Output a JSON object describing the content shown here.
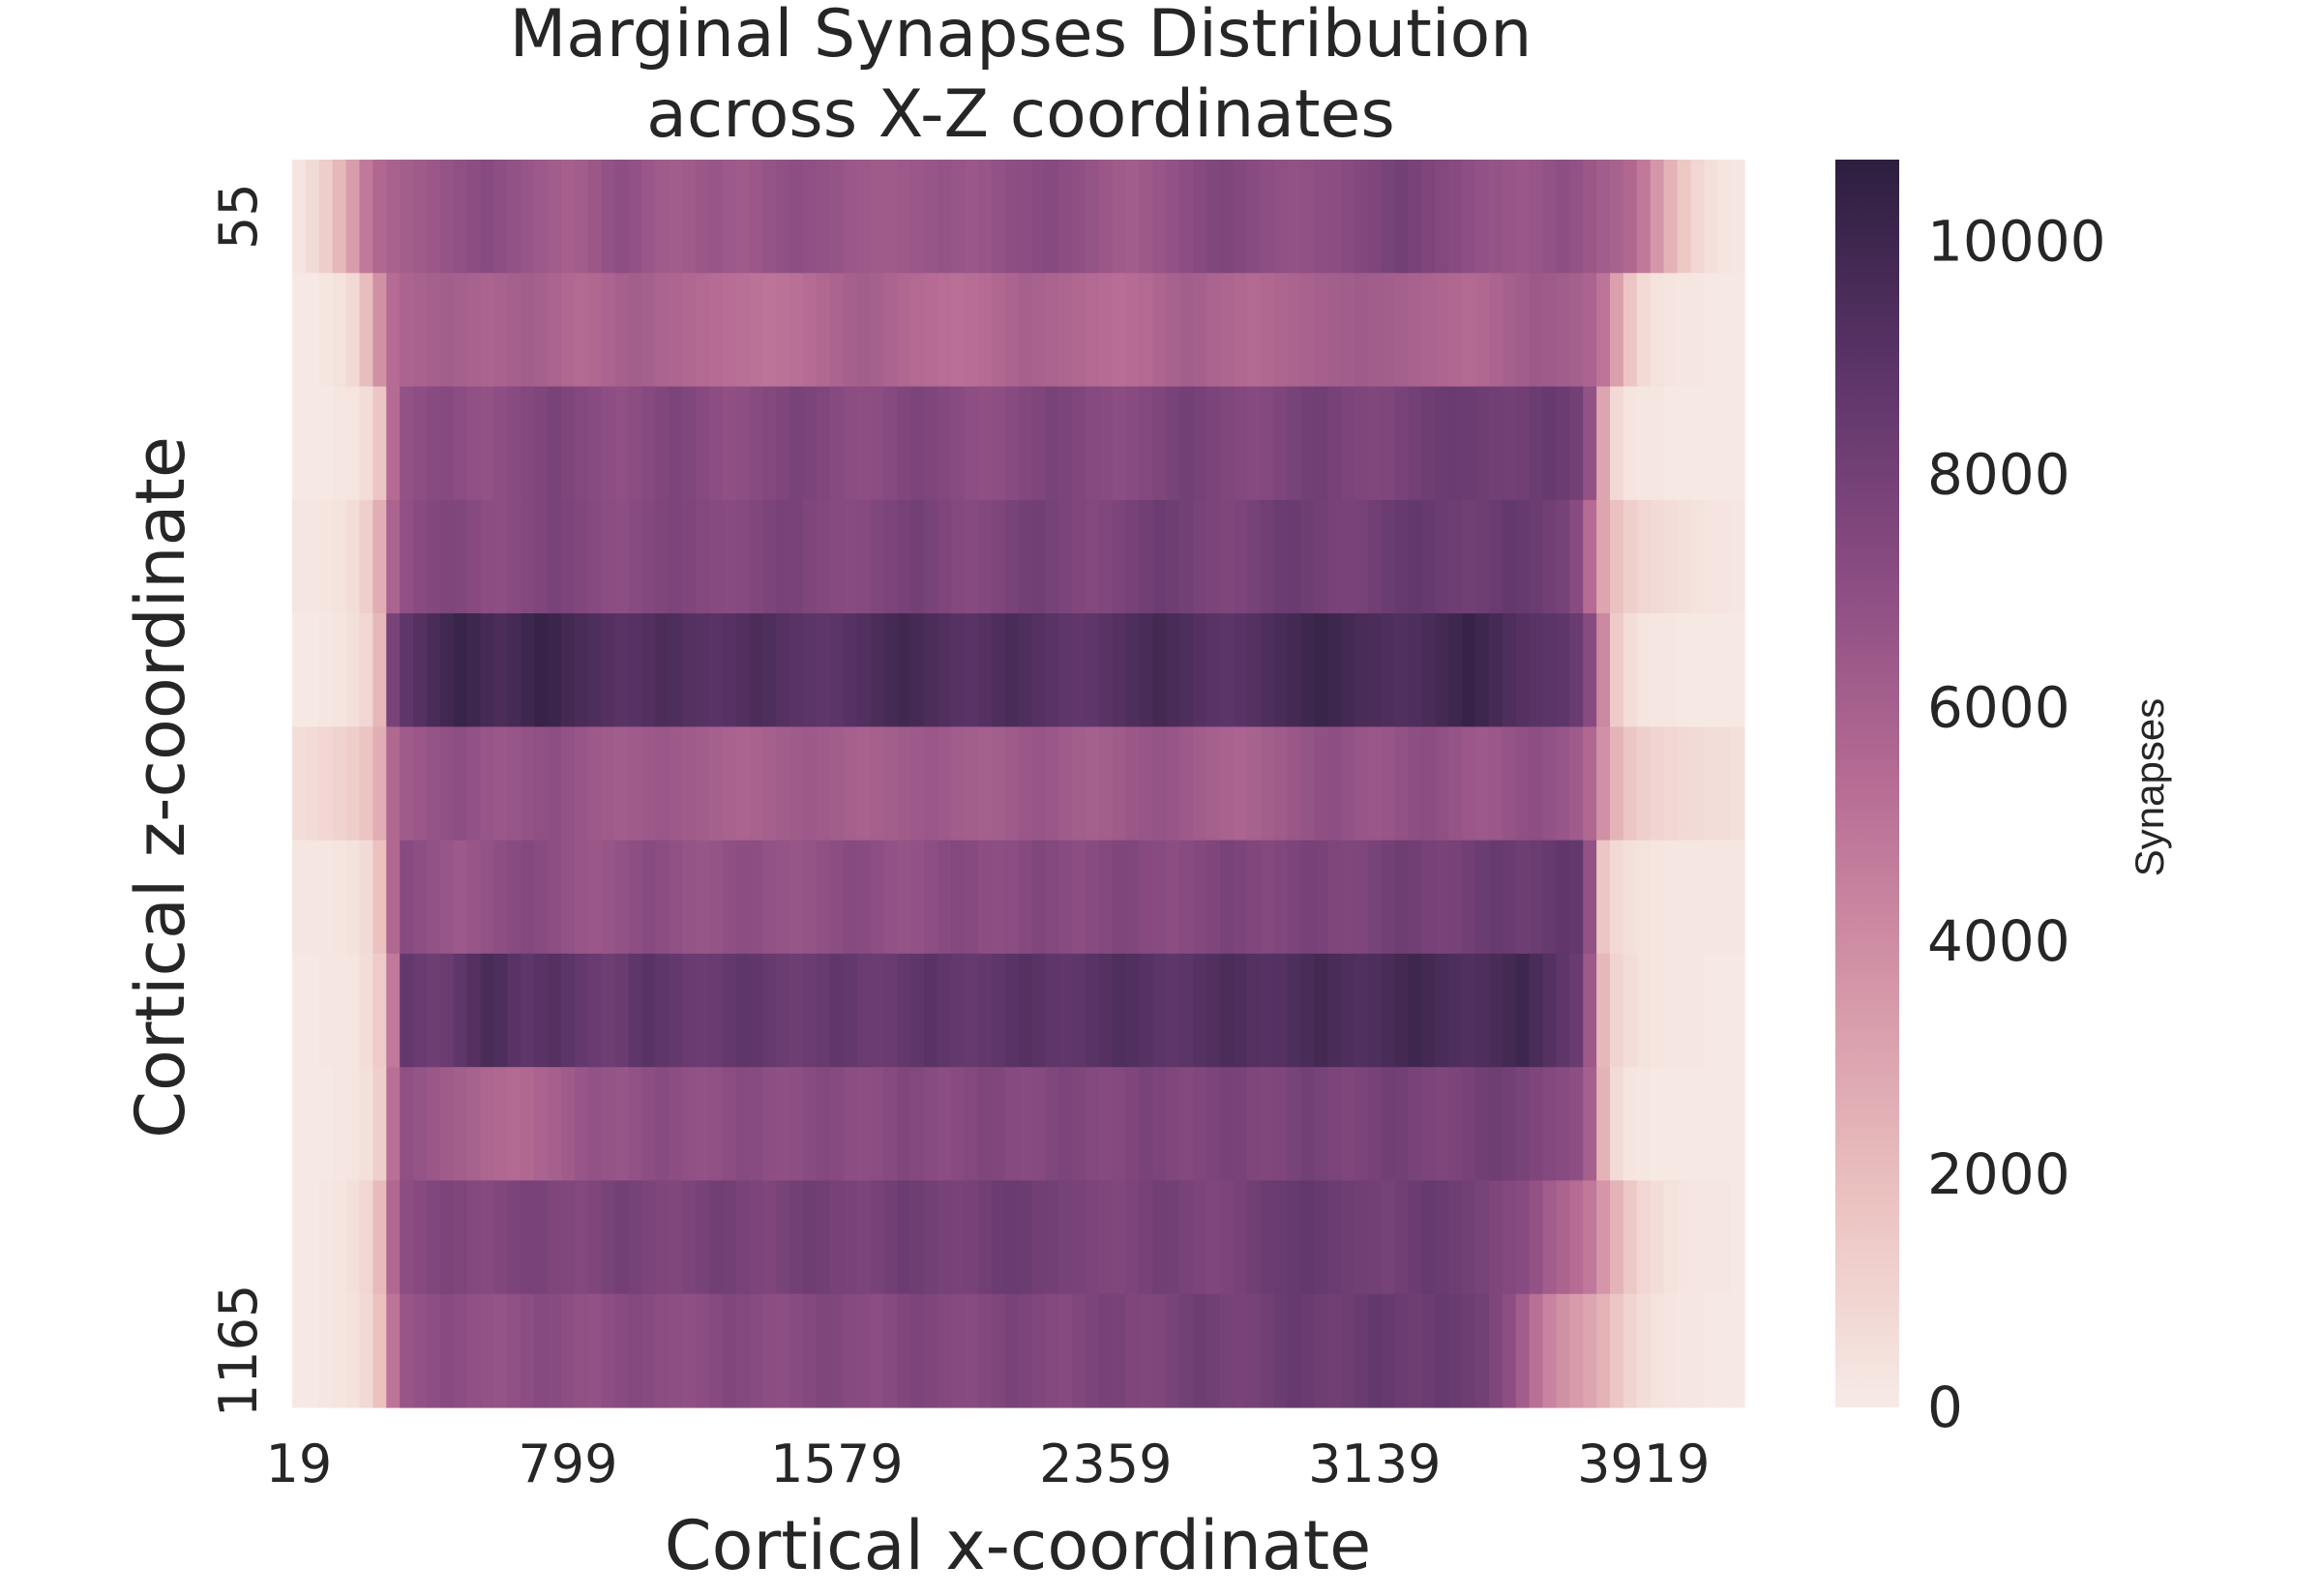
{
  "chart_data": {
    "type": "heatmap",
    "title": [
      "Marginal Synapses Distribution",
      "across X-Z coordinates"
    ],
    "xlabel": "Cortical x-coordinate",
    "ylabel": "Cortical z-coordinate",
    "x_tick_labels": [
      "19",
      "799",
      "1579",
      "2359",
      "3139",
      "3919"
    ],
    "x_tick_columns": [
      0,
      20,
      40,
      60,
      80,
      100
    ],
    "y_tick_labels": [
      "55",
      "1165"
    ],
    "y_tick_rows": [
      0,
      10
    ],
    "colorbar": {
      "label": "Synapses",
      "min": 0,
      "max": 10700,
      "ticks": [
        "0",
        "2000",
        "4000",
        "6000",
        "8000",
        "10000"
      ],
      "colors": [
        "#f7ebe6",
        "#ebc2c0",
        "#d597a8",
        "#b66c94",
        "#8a4c82",
        "#5b3468",
        "#2c1e3e"
      ]
    },
    "grid": false,
    "n_columns": 108,
    "rows": [
      [
        300,
        700,
        1300,
        2200,
        3300,
        4800,
        5600,
        5900,
        6100,
        6300,
        6500,
        6700,
        6900,
        7100,
        7200,
        7000,
        6800,
        6600,
        6400,
        6200,
        6000,
        6200,
        6500,
        6800,
        7000,
        6800,
        6500,
        6300,
        6200,
        6300,
        6500,
        6600,
        6400,
        6300,
        6500,
        6700,
        6900,
        7000,
        6900,
        6800,
        6700,
        6500,
        6400,
        6300,
        6300,
        6400,
        6500,
        6600,
        6700,
        6600,
        6500,
        6600,
        6800,
        7000,
        7100,
        7200,
        7300,
        7100,
        6900,
        6700,
        6500,
        6300,
        6200,
        6400,
        6600,
        6800,
        7100,
        7300,
        7500,
        7600,
        7400,
        7200,
        7000,
        6900,
        6800,
        6900,
        7000,
        7100,
        7200,
        7400,
        7600,
        7800,
        8000,
        7800,
        7600,
        7400,
        7200,
        7000,
        6800,
        6700,
        6600,
        6500,
        6600,
        6800,
        7000,
        6800,
        6500,
        6200,
        5900,
        5600,
        4800,
        3600,
        2400,
        1500,
        900,
        500,
        300,
        200
      ],
      [
        100,
        100,
        200,
        400,
        800,
        2000,
        3800,
        5400,
        5800,
        5900,
        6000,
        6100,
        6000,
        5900,
        5800,
        5900,
        6000,
        6100,
        6000,
        5800,
        5600,
        5500,
        5600,
        5800,
        6000,
        6100,
        6000,
        5800,
        5700,
        5600,
        5500,
        5400,
        5300,
        5200,
        5100,
        5000,
        5100,
        5200,
        5400,
        5600,
        5800,
        6000,
        6100,
        6000,
        5800,
        5600,
        5500,
        5400,
        5300,
        5200,
        5300,
        5400,
        5600,
        5800,
        6000,
        5900,
        5800,
        5700,
        5600,
        5500,
        5400,
        5300,
        5400,
        5500,
        5700,
        5900,
        6100,
        6000,
        5800,
        5700,
        5600,
        5500,
        5600,
        5700,
        5800,
        5900,
        6000,
        6100,
        6200,
        6300,
        6200,
        6100,
        6000,
        5900,
        5800,
        5700,
        5600,
        5500,
        5600,
        5800,
        6000,
        6200,
        6400,
        6300,
        6200,
        6000,
        5800,
        5000,
        3200,
        1600,
        700,
        400,
        300,
        200,
        200,
        100,
        100,
        100
      ],
      [
        100,
        100,
        100,
        200,
        300,
        600,
        1600,
        5400,
        6800,
        7000,
        7200,
        7300,
        7100,
        6900,
        6800,
        7000,
        7200,
        7400,
        7600,
        7800,
        7600,
        7400,
        7200,
        7000,
        6900,
        7100,
        7300,
        7500,
        7700,
        7500,
        7300,
        7100,
        6900,
        7000,
        7200,
        7400,
        7600,
        7800,
        7700,
        7500,
        7300,
        7100,
        7000,
        7100,
        7300,
        7500,
        7700,
        7600,
        7400,
        7200,
        7000,
        6900,
        7000,
        7200,
        7400,
        7600,
        7800,
        7700,
        7500,
        7300,
        7200,
        7100,
        7200,
        7400,
        7600,
        7800,
        8000,
        7900,
        7700,
        7500,
        7400,
        7300,
        7400,
        7600,
        7800,
        8000,
        8100,
        7900,
        7700,
        7600,
        7500,
        7600,
        7800,
        8000,
        8200,
        8300,
        8400,
        8300,
        8200,
        8100,
        8000,
        8100,
        8300,
        8500,
        8300,
        8000,
        6800,
        3000,
        800,
        300,
        200,
        200,
        100,
        100,
        100,
        100,
        100,
        100
      ],
      [
        200,
        200,
        300,
        400,
        600,
        1200,
        2600,
        5800,
        6900,
        7200,
        7400,
        7600,
        7500,
        7300,
        7100,
        7000,
        7200,
        7400,
        7600,
        7800,
        7700,
        7500,
        7300,
        7100,
        7000,
        7200,
        7400,
        7600,
        7700,
        7600,
        7400,
        7300,
        7200,
        7300,
        7500,
        7700,
        7900,
        7800,
        7600,
        7400,
        7300,
        7200,
        7300,
        7500,
        7700,
        7900,
        8000,
        7800,
        7600,
        7400,
        7300,
        7400,
        7600,
        7800,
        8000,
        8100,
        7900,
        7700,
        7500,
        7400,
        7500,
        7700,
        7900,
        8100,
        8300,
        8200,
        8000,
        7800,
        7700,
        7600,
        7700,
        7900,
        8100,
        8300,
        8400,
        8200,
        8000,
        7900,
        7800,
        7900,
        8100,
        8300,
        8500,
        8600,
        8500,
        8300,
        8200,
        8100,
        8200,
        8400,
        8600,
        8500,
        8300,
        8100,
        7900,
        7200,
        5400,
        3000,
        1800,
        1200,
        900,
        700,
        600,
        500,
        400,
        300,
        300,
        200
      ],
      [
        100,
        100,
        200,
        300,
        500,
        900,
        2200,
        7800,
        8800,
        9200,
        9600,
        9900,
        10200,
        10000,
        9700,
        9500,
        9700,
        10000,
        10300,
        10100,
        9800,
        9600,
        9400,
        9200,
        9000,
        9100,
        9300,
        9500,
        9400,
        9200,
        9100,
        9000,
        9100,
        9300,
        9500,
        9400,
        9200,
        9000,
        8900,
        8800,
        8900,
        9100,
        9300,
        9500,
        9700,
        9900,
        9700,
        9500,
        9300,
        9100,
        9000,
        9200,
        9400,
        9600,
        9400,
        9200,
        9000,
        8800,
        8700,
        8800,
        9000,
        9200,
        9400,
        9600,
        9800,
        9600,
        9400,
        9200,
        9000,
        8900,
        9000,
        9200,
        9400,
        9600,
        9800,
        10000,
        10200,
        10000,
        9800,
        9600,
        9500,
        9400,
        9300,
        9400,
        9600,
        9800,
        10000,
        10300,
        10000,
        9700,
        9400,
        9200,
        9000,
        8900,
        8800,
        8400,
        7200,
        4200,
        1400,
        600,
        300,
        200,
        200,
        100,
        100,
        100,
        100,
        100
      ],
      [
        600,
        700,
        900,
        1100,
        1300,
        1700,
        2600,
        5600,
        6300,
        6500,
        6700,
        6900,
        7000,
        6800,
        6600,
        6500,
        6600,
        6800,
        6900,
        7000,
        6800,
        6600,
        6400,
        6300,
        6200,
        6300,
        6400,
        6500,
        6400,
        6300,
        6200,
        6000,
        5900,
        5800,
        5900,
        6000,
        6200,
        6300,
        6400,
        6300,
        6200,
        6000,
        5900,
        6000,
        6100,
        6300,
        6400,
        6500,
        6400,
        6200,
        6100,
        6000,
        6100,
        6300,
        6500,
        6600,
        6500,
        6300,
        6100,
        6000,
        6100,
        6300,
        6500,
        6600,
        6700,
        6600,
        6400,
        6200,
        6000,
        5900,
        5800,
        5900,
        6100,
        6300,
        6500,
        6700,
        6900,
        7000,
        6800,
        6600,
        6500,
        6600,
        6800,
        7000,
        7100,
        6900,
        6700,
        6500,
        6400,
        6500,
        6700,
        6900,
        7000,
        6800,
        6600,
        6300,
        5600,
        3800,
        2400,
        1600,
        1200,
        1000,
        900,
        800,
        700,
        600,
        600,
        500
      ],
      [
        200,
        200,
        200,
        300,
        400,
        700,
        1800,
        5600,
        7200,
        7000,
        6800,
        6600,
        6400,
        6600,
        6800,
        7000,
        7200,
        7400,
        7200,
        7000,
        6800,
        6600,
        6500,
        6600,
        6800,
        7000,
        7200,
        7100,
        6900,
        6700,
        6600,
        6700,
        6900,
        7100,
        7000,
        6800,
        6700,
        6600,
        6700,
        6900,
        7100,
        7300,
        7200,
        7000,
        6800,
        6700,
        6800,
        7000,
        7200,
        7400,
        7300,
        7100,
        7000,
        7100,
        7300,
        7500,
        7400,
        7200,
        7100,
        7200,
        7400,
        7600,
        7500,
        7300,
        7200,
        7100,
        7200,
        7400,
        7600,
        7800,
        7700,
        7500,
        7400,
        7500,
        7700,
        7900,
        7800,
        7600,
        7500,
        7600,
        7800,
        8000,
        8200,
        8100,
        7900,
        7800,
        7900,
        8100,
        8300,
        8500,
        8400,
        8200,
        8300,
        8500,
        8700,
        8600,
        6800,
        1600,
        800,
        500,
        400,
        300,
        200,
        200,
        200,
        200,
        200,
        200
      ],
      [
        100,
        100,
        200,
        200,
        300,
        600,
        1400,
        4800,
        8600,
        8400,
        8200,
        8400,
        8800,
        9200,
        9600,
        9400,
        9000,
        8800,
        9000,
        9200,
        8900,
        8600,
        8400,
        8200,
        8400,
        8800,
        9000,
        8800,
        8600,
        8400,
        8300,
        8400,
        8600,
        8800,
        8700,
        8500,
        8300,
        8200,
        8300,
        8500,
        8700,
        8600,
        8400,
        8300,
        8400,
        8600,
        8800,
        9000,
        8800,
        8600,
        8500,
        8600,
        8800,
        9000,
        9200,
        9000,
        8800,
        8700,
        8800,
        9000,
        9200,
        9400,
        9300,
        9100,
        8900,
        8800,
        8900,
        9100,
        9300,
        9500,
        9400,
        9200,
        9100,
        9200,
        9400,
        9600,
        9800,
        9600,
        9400,
        9300,
        9400,
        9600,
        9800,
        10000,
        9800,
        9600,
        9400,
        9300,
        9400,
        9600,
        9800,
        10000,
        9600,
        9200,
        8800,
        8400,
        6400,
        2200,
        1000,
        600,
        400,
        300,
        200,
        200,
        200,
        100,
        100,
        100
      ],
      [
        100,
        100,
        100,
        200,
        300,
        500,
        1200,
        5200,
        6900,
        6700,
        6500,
        6300,
        6100,
        5900,
        5700,
        5600,
        5500,
        5600,
        5800,
        6000,
        6300,
        6600,
        6800,
        6700,
        6600,
        6800,
        7000,
        7200,
        7100,
        6900,
        6800,
        6900,
        7100,
        7300,
        7200,
        7000,
        6900,
        7000,
        7200,
        7400,
        7300,
        7100,
        7000,
        7100,
        7300,
        7500,
        7400,
        7200,
        7100,
        7200,
        7400,
        7600,
        7500,
        7300,
        7200,
        7300,
        7500,
        7700,
        7600,
        7400,
        7300,
        7400,
        7600,
        7800,
        7700,
        7500,
        7400,
        7500,
        7700,
        7900,
        7800,
        7600,
        7500,
        7600,
        7800,
        8000,
        7900,
        7700,
        7600,
        7700,
        7900,
        8100,
        8000,
        7800,
        7700,
        7600,
        7700,
        7900,
        8100,
        8200,
        8000,
        7800,
        7600,
        7400,
        7200,
        7000,
        6000,
        2400,
        700,
        300,
        200,
        100,
        100,
        100,
        100,
        100,
        100,
        100
      ],
      [
        100,
        100,
        200,
        300,
        500,
        900,
        2100,
        5600,
        7100,
        7300,
        7500,
        7700,
        7600,
        7400,
        7300,
        7500,
        7700,
        7900,
        7800,
        7600,
        7500,
        7400,
        7600,
        7800,
        8000,
        7900,
        7700,
        7600,
        7500,
        7700,
        7900,
        8100,
        8000,
        7800,
        7700,
        7600,
        7800,
        8000,
        8200,
        8100,
        7900,
        7800,
        7700,
        7900,
        8100,
        8300,
        8200,
        8000,
        7900,
        7800,
        7900,
        8100,
        8300,
        8400,
        8300,
        8100,
        8000,
        7900,
        7800,
        7700,
        7600,
        7500,
        7700,
        7900,
        8100,
        8000,
        7800,
        7700,
        7600,
        7700,
        7900,
        8100,
        8300,
        8400,
        8500,
        8600,
        8500,
        8300,
        8200,
        8100,
        8000,
        7900,
        8100,
        8300,
        8500,
        8400,
        8200,
        8000,
        7800,
        7600,
        7400,
        7200,
        6800,
        6200,
        5800,
        5400,
        4800,
        3600,
        2400,
        1500,
        900,
        600,
        400,
        300,
        200,
        200,
        200,
        100
      ],
      [
        100,
        100,
        200,
        300,
        400,
        800,
        1800,
        5000,
        6600,
        6800,
        7000,
        7200,
        7100,
        6900,
        6800,
        6700,
        6900,
        7100,
        7300,
        7200,
        7000,
        6900,
        6800,
        7000,
        7200,
        7400,
        7300,
        7100,
        7000,
        6900,
        7100,
        7300,
        7500,
        7400,
        7200,
        7100,
        7000,
        7200,
        7400,
        7600,
        7500,
        7300,
        7200,
        7100,
        7300,
        7500,
        7700,
        7600,
        7400,
        7300,
        7200,
        7400,
        7600,
        7800,
        7700,
        7500,
        7400,
        7300,
        7500,
        7700,
        7900,
        7800,
        7600,
        7500,
        7600,
        7800,
        8000,
        8200,
        8100,
        7900,
        7800,
        7900,
        8100,
        8300,
        8500,
        8400,
        8200,
        8100,
        8200,
        8400,
        8600,
        8500,
        8300,
        8200,
        8300,
        8500,
        8400,
        8200,
        8000,
        7600,
        7000,
        6200,
        5200,
        4400,
        3800,
        3400,
        3000,
        2400,
        1600,
        1000,
        600,
        400,
        300,
        200,
        200,
        100,
        100,
        100
      ]
    ]
  }
}
